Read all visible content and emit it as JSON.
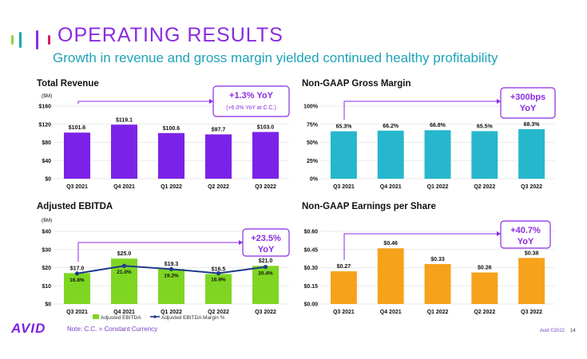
{
  "header": {
    "title": "OPERATING RESULTS",
    "subtitle": "Growth in revenue and gross margin yielded continued healthy profitability"
  },
  "colors": {
    "accent_purple": "#8a2be2",
    "accent_teal": "#1ea3b8",
    "revenue_bar": "#7c22e8",
    "margin_bar": "#26b7cc",
    "ebitda_bar": "#7fd622",
    "eps_bar": "#f7a21b",
    "margin_line": "#1f3a8a"
  },
  "logo_text": "AVID",
  "footer": {
    "note": "Note:  C.C. = Constant Currency",
    "copyright": "Avid ©2022",
    "page": "14"
  },
  "chart_data": [
    {
      "id": "revenue",
      "type": "bar",
      "title": "Total Revenue",
      "unit_label": "($M)",
      "categories": [
        "Q3 2021",
        "Q4 2021",
        "Q1 2022",
        "Q2 2022",
        "Q3 2022"
      ],
      "values": [
        101.6,
        119.1,
        100.6,
        97.7,
        103.0
      ],
      "value_labels": [
        "$101.6",
        "$119.1",
        "$100.6",
        "$97.7",
        "$103.0"
      ],
      "ylim": [
        0,
        160
      ],
      "yticks": [
        0,
        40,
        80,
        120,
        160
      ],
      "ytick_labels": [
        "$0",
        "$40",
        "$80",
        "$120",
        "$160"
      ],
      "callout": [
        "+1.3% YoY",
        "(+6.0% YoY at C.C.)"
      ]
    },
    {
      "id": "gross-margin",
      "type": "bar",
      "title": "Non-GAAP Gross Margin",
      "categories": [
        "Q3 2021",
        "Q4 2021",
        "Q1 2022",
        "Q2 2022",
        "Q3 2022"
      ],
      "values": [
        65.3,
        66.2,
        66.8,
        65.5,
        68.3
      ],
      "value_labels": [
        "65.3%",
        "66.2%",
        "66.8%",
        "65.5%",
        "68.3%"
      ],
      "ylim": [
        0,
        100
      ],
      "yticks": [
        0,
        25,
        50,
        75,
        100
      ],
      "ytick_labels": [
        "0%",
        "25%",
        "50%",
        "75%",
        "100%"
      ],
      "callout": [
        "+300bps",
        "YoY"
      ]
    },
    {
      "id": "ebitda",
      "type": "bar",
      "title": "Adjusted EBITDA",
      "unit_label": "($M)",
      "categories": [
        "Q3 2021",
        "Q4 2021",
        "Q1 2022",
        "Q2 2022",
        "Q3 2022"
      ],
      "values": [
        17.0,
        25.0,
        19.3,
        16.5,
        21.0
      ],
      "value_labels": [
        "$17.0",
        "$25.0",
        "$19.3",
        "$16.5",
        "$21.0"
      ],
      "line_values": [
        16.8,
        21.0,
        19.2,
        16.9,
        20.4
      ],
      "line_labels": [
        "16.8%",
        "21.0%",
        "19.2%",
        "16.9%",
        "20.4%"
      ],
      "ylim": [
        0,
        40
      ],
      "yticks": [
        0,
        10,
        20,
        30,
        40
      ],
      "ytick_labels": [
        "$0",
        "$10",
        "$20",
        "$30",
        "$40"
      ],
      "legend": [
        "Adjusted EBITDA",
        "Adjusted EBITDA Margin %"
      ],
      "callout": [
        "+23.5%",
        "YoY"
      ]
    },
    {
      "id": "eps",
      "type": "bar",
      "title": "Non-GAAP Earnings per Share",
      "categories": [
        "Q3 2021",
        "Q4 2021",
        "Q1 2022",
        "Q2 2022",
        "Q3 2022"
      ],
      "values": [
        0.27,
        0.46,
        0.33,
        0.26,
        0.38
      ],
      "value_labels": [
        "$0.27",
        "$0.46",
        "$0.33",
        "$0.26",
        "$0.38"
      ],
      "ylim": [
        0,
        0.6
      ],
      "yticks": [
        0,
        0.15,
        0.3,
        0.45,
        0.6
      ],
      "ytick_labels": [
        "$0.00",
        "$0.15",
        "$0.30",
        "$0.45",
        "$0.60"
      ],
      "callout": [
        "+40.7%",
        "YoY"
      ]
    }
  ]
}
